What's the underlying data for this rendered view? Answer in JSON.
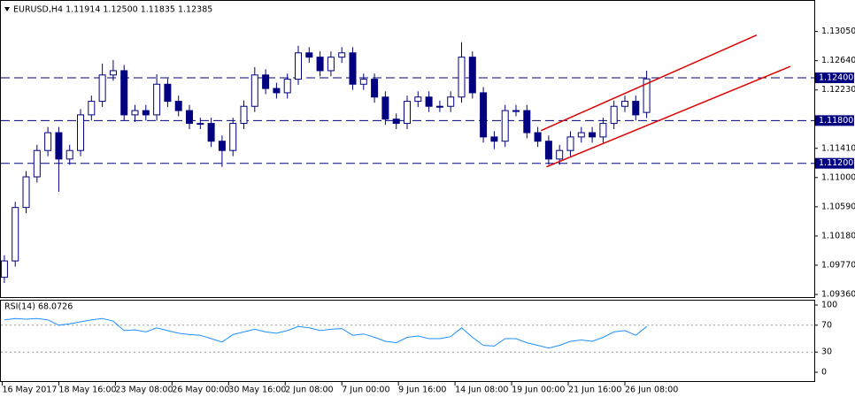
{
  "chart_data": {
    "type": "candlestick",
    "title": "EURUSD,H4  1.11914 1.12500 1.11835 1.12385",
    "bull_color": "#ffffff",
    "bear_color": "#000080",
    "outline_color": "#000080",
    "open": [
      1.096,
      1.0983,
      1.1058,
      1.1101,
      1.1138,
      1.1163,
      1.1126,
      1.1138,
      1.1188,
      1.1207,
      1.1244,
      1.125,
      1.1188,
      1.1194,
      1.1188,
      1.1231,
      1.1207,
      1.1194,
      1.1176,
      1.1176,
      1.1151,
      1.1138,
      1.1176,
      1.12,
      1.1244,
      1.1225,
      1.1219,
      1.1238,
      1.1275,
      1.1269,
      1.125,
      1.1269,
      1.1275,
      1.1231,
      1.1238,
      1.1213,
      1.1182,
      1.1176,
      1.1207,
      1.1213,
      1.12,
      1.12,
      1.1213,
      1.1269,
      1.1219,
      1.1157,
      1.1151,
      1.1194,
      1.1194,
      1.1163,
      1.1151,
      1.1126,
      1.1138,
      1.1157,
      1.1163,
      1.1157,
      1.1176,
      1.12,
      1.1207,
      1.11914
    ],
    "high": [
      1.0991,
      1.1066,
      1.1109,
      1.1146,
      1.1171,
      1.1171,
      1.1146,
      1.1196,
      1.1215,
      1.126,
      1.1265,
      1.1258,
      1.1202,
      1.1202,
      1.1245,
      1.1239,
      1.1215,
      1.1202,
      1.1184,
      1.1184,
      1.1159,
      1.1184,
      1.1208,
      1.1255,
      1.1252,
      1.1233,
      1.1246,
      1.1285,
      1.1283,
      1.1277,
      1.1277,
      1.1283,
      1.1283,
      1.1246,
      1.1246,
      1.1221,
      1.119,
      1.1215,
      1.1221,
      1.1221,
      1.1208,
      1.1221,
      1.129,
      1.1277,
      1.1227,
      1.1165,
      1.1202,
      1.1202,
      1.1202,
      1.1171,
      1.1159,
      1.1146,
      1.1165,
      1.1171,
      1.1171,
      1.1184,
      1.1208,
      1.1215,
      1.1215,
      1.125
    ],
    "low": [
      1.0952,
      1.0975,
      1.105,
      1.1093,
      1.113,
      1.108,
      1.1118,
      1.113,
      1.118,
      1.1199,
      1.1236,
      1.118,
      1.1178,
      1.118,
      1.118,
      1.1199,
      1.1186,
      1.1168,
      1.1168,
      1.1143,
      1.1115,
      1.113,
      1.1168,
      1.1192,
      1.1217,
      1.1211,
      1.1211,
      1.123,
      1.1261,
      1.1242,
      1.1242,
      1.1261,
      1.1223,
      1.1223,
      1.1205,
      1.1174,
      1.1168,
      1.1168,
      1.1199,
      1.1192,
      1.1192,
      1.1192,
      1.1205,
      1.1211,
      1.1149,
      1.114,
      1.1143,
      1.1186,
      1.1155,
      1.1143,
      1.1118,
      1.1118,
      1.113,
      1.1149,
      1.1149,
      1.1149,
      1.1168,
      1.1192,
      1.118,
      1.11835
    ],
    "close": [
      1.0983,
      1.1058,
      1.1101,
      1.1138,
      1.1163,
      1.1126,
      1.1138,
      1.1188,
      1.1207,
      1.1244,
      1.125,
      1.1188,
      1.1194,
      1.1188,
      1.1231,
      1.1207,
      1.1194,
      1.1176,
      1.1176,
      1.1151,
      1.1138,
      1.1176,
      1.12,
      1.1244,
      1.1225,
      1.1219,
      1.1238,
      1.1275,
      1.1269,
      1.125,
      1.1269,
      1.1275,
      1.1231,
      1.1238,
      1.1213,
      1.1182,
      1.1176,
      1.1207,
      1.1213,
      1.12,
      1.12,
      1.1213,
      1.1269,
      1.1219,
      1.1157,
      1.1151,
      1.1194,
      1.1194,
      1.1163,
      1.1151,
      1.1126,
      1.1138,
      1.1157,
      1.1163,
      1.1157,
      1.1176,
      1.12,
      1.1207,
      1.1188,
      1.12385
    ],
    "xlim": [
      -0.4,
      74.4
    ],
    "xticks": [
      {
        "value": -0.2,
        "label": "16 May 2017"
      },
      {
        "value": 5,
        "label": "18 May 16:00"
      },
      {
        "value": 10.2,
        "label": "23 May 08:00"
      },
      {
        "value": 15.4,
        "label": "26 May 00:00"
      },
      {
        "value": 20.6,
        "label": "30 May 16:00"
      },
      {
        "value": 25.8,
        "label": "2 Jun 08:00"
      },
      {
        "value": 31,
        "label": "7 Jun 00:00"
      },
      {
        "value": 36.2,
        "label": "9 Jun 16:00"
      },
      {
        "value": 41.4,
        "label": "14 Jun 08:00"
      },
      {
        "value": 46.6,
        "label": "19 Jun 00:00"
      },
      {
        "value": 51.8,
        "label": "21 Jun 16:00"
      },
      {
        "value": 57,
        "label": "26 Jun 08:00"
      }
    ],
    "ylim": [
      1.0931,
      1.1343
    ],
    "yticks": [
      {
        "value": 1.1305,
        "label": "1.13050"
      },
      {
        "value": 1.1264,
        "label": "1.12640"
      },
      {
        "value": 1.1223,
        "label": "1.12230"
      },
      {
        "value": 1.1141,
        "label": "1.11410"
      },
      {
        "value": 1.11,
        "label": "1.11000"
      },
      {
        "value": 1.1059,
        "label": "1.10590"
      },
      {
        "value": 1.1018,
        "label": "1.10180"
      },
      {
        "value": 1.0977,
        "label": "1.09770"
      },
      {
        "value": 1.0936,
        "label": "1.09360"
      }
    ],
    "levels": [
      {
        "value": 1.124,
        "label": "1.12400"
      },
      {
        "value": 1.118,
        "label": "1.11800"
      },
      {
        "value": 1.112,
        "label": "1.11200"
      }
    ],
    "level_color": "#000080",
    "channel_color": "#e00000",
    "channel": [
      {
        "x": [
          49.3,
          69.1
        ],
        "y": [
          1.1166,
          1.13
        ]
      },
      {
        "x": [
          49.8,
          72.2
        ],
        "y": [
          1.1115,
          1.1256
        ]
      }
    ],
    "rsi": {
      "title": "RSI(14) 68.0726",
      "color": "#1e90ff",
      "ylim": [
        0,
        100
      ],
      "yticks": [
        100,
        70,
        30,
        0
      ],
      "levels": [
        70,
        30
      ],
      "values": [
        78,
        80,
        79,
        80,
        78,
        70,
        72,
        75,
        78,
        80,
        76,
        62,
        63,
        60,
        66,
        62,
        58,
        56,
        55,
        50,
        45,
        56,
        60,
        64,
        60,
        58,
        62,
        68,
        66,
        62,
        64,
        65,
        55,
        57,
        52,
        46,
        44,
        52,
        54,
        50,
        50,
        53,
        66,
        52,
        40,
        39,
        50,
        50,
        44,
        40,
        36,
        40,
        46,
        48,
        46,
        52,
        60,
        62,
        55,
        68.0726
      ]
    }
  }
}
